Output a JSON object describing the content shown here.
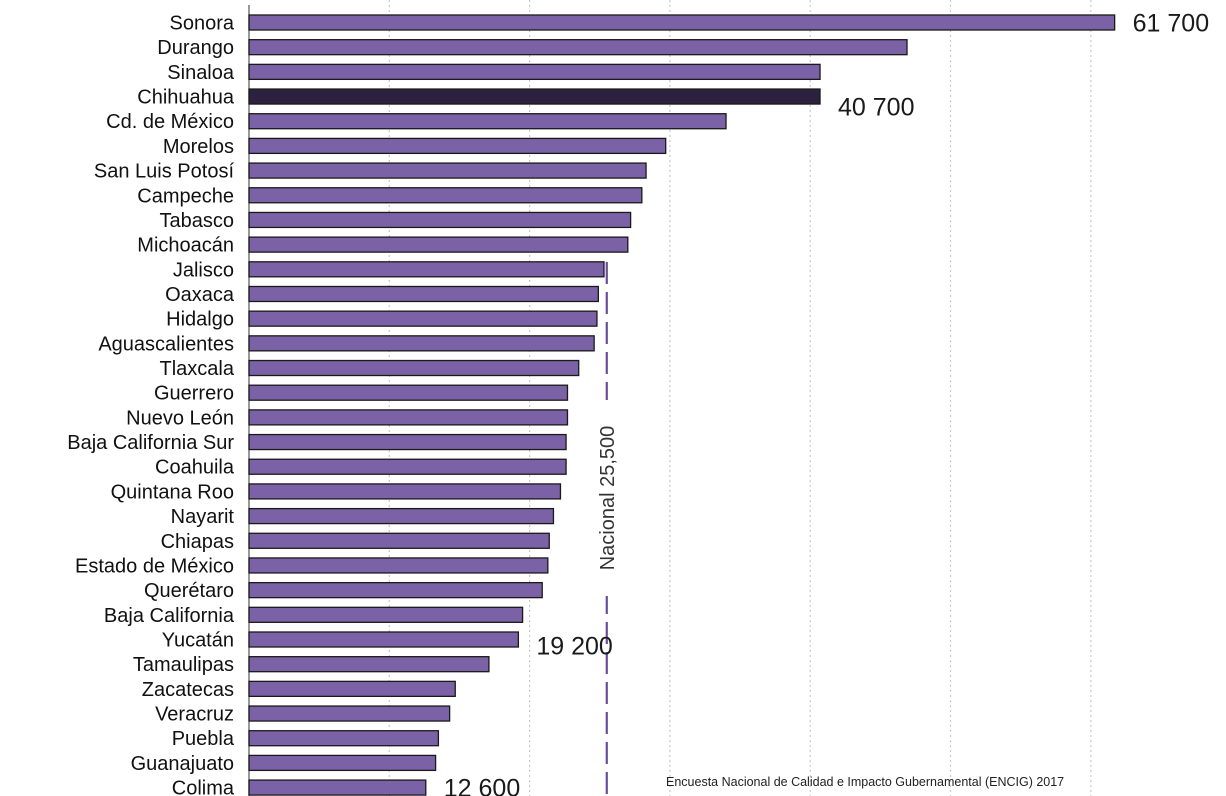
{
  "chart_data": {
    "type": "bar",
    "orientation": "horizontal",
    "categories": [
      "Sonora",
      "Durango",
      "Sinaloa",
      "Chihuahua",
      "Cd. de México",
      "Morelos",
      "San Luis Potosí",
      "Campeche",
      "Tabasco",
      "Michoacán",
      "Jalisco",
      "Oaxaca",
      "Hidalgo",
      "Aguascalientes",
      "Tlaxcala",
      "Guerrero",
      "Nuevo León",
      "Baja California Sur",
      "Coahuila",
      "Quintana Roo",
      "Nayarit",
      "Chiapas",
      "Estado de México",
      "Querétaro",
      "Baja California",
      "Yucatán",
      "Tamaulipas",
      "Zacatecas",
      "Veracruz",
      "Puebla",
      "Guanajuato",
      "Colima"
    ],
    "values": [
      61700,
      46900,
      40700,
      40700,
      34000,
      29700,
      28300,
      28000,
      27200,
      27000,
      25300,
      24900,
      24800,
      24600,
      23500,
      22700,
      22700,
      22600,
      22600,
      22200,
      21700,
      21400,
      21300,
      20900,
      19500,
      19200,
      17100,
      14700,
      14300,
      13500,
      13300,
      12600
    ],
    "highlight": "Chihuahua",
    "data_labels": [
      {
        "category": "Sonora",
        "text": "61 700"
      },
      {
        "category": "Chihuahua",
        "text": "40 700"
      },
      {
        "category": "Yucatán",
        "text": "19 200"
      },
      {
        "category": "Colima",
        "text": "12 600"
      }
    ],
    "reference_line": {
      "value": 25500,
      "label": "Nacional 25,500"
    },
    "xlim": [
      0,
      65000
    ],
    "gridlines": [
      10000,
      20000,
      30000,
      40000,
      50000,
      60000
    ],
    "grid": true,
    "colors": {
      "bar": "#7b61a5",
      "highlight": "#2c2240",
      "border": "#1a1a1a",
      "reference": "#6a4d9a",
      "grid": "#c9c9c9"
    }
  },
  "source": "Encuesta Nacional de Calidad e Impacto Gubernamental (ENCIG) 2017"
}
